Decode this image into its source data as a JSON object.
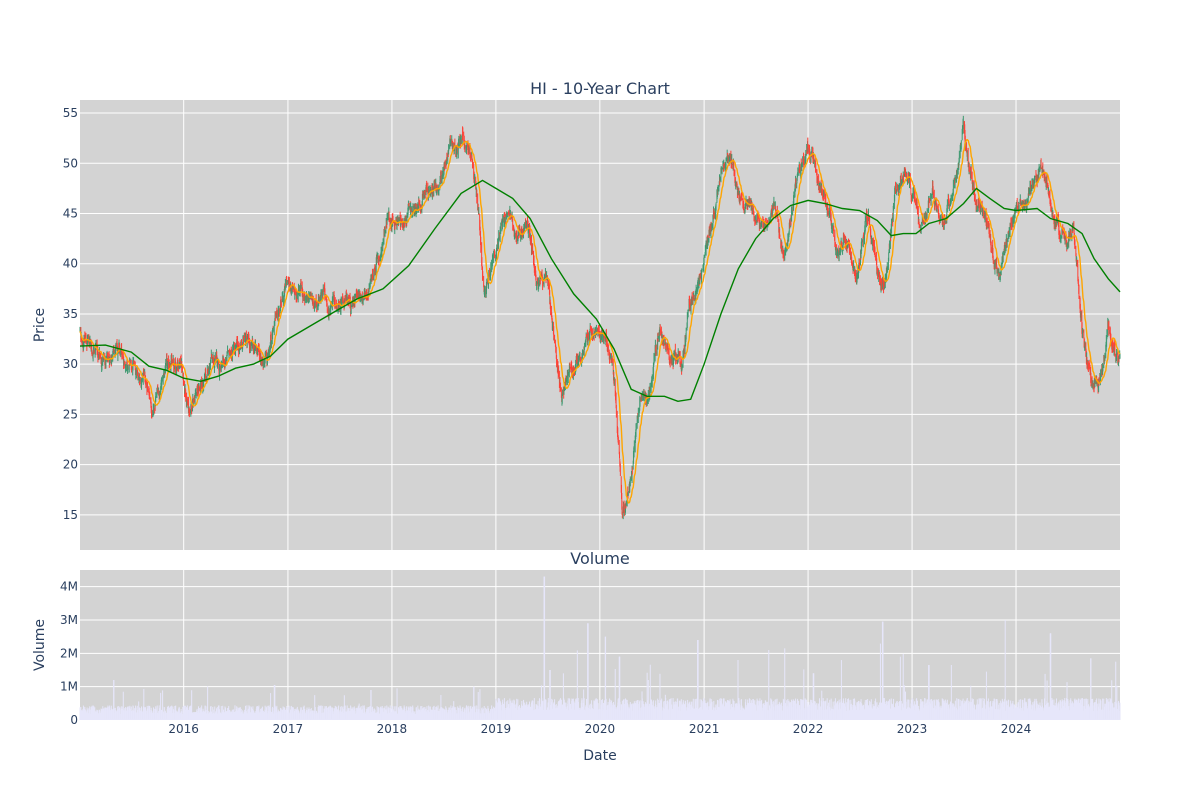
{
  "chart_data": {
    "type": "candlestick",
    "title": "HI - 10-Year Chart",
    "panels": {
      "price": {
        "ylabel": "Price",
        "ylim": [
          11.5,
          56.3
        ],
        "yticks": [
          15,
          20,
          25,
          30,
          35,
          40,
          45,
          50,
          55
        ]
      },
      "volume": {
        "title": "Volume",
        "ylabel": "Volume",
        "ylim": [
          0,
          4500000
        ],
        "yticks": [
          0,
          1000000,
          2000000,
          3000000,
          4000000
        ],
        "ytick_labels": [
          "0",
          "1M",
          "2M",
          "3M",
          "4M"
        ]
      }
    },
    "xlabel": "Date",
    "x_range": [
      "2015-01-02",
      "2024-12-31"
    ],
    "xticks": [
      "2016",
      "2017",
      "2018",
      "2019",
      "2020",
      "2021",
      "2022",
      "2023",
      "2024"
    ],
    "colors": {
      "up": "#3d9970",
      "down": "#ff4136",
      "ma_short": "#ffa500",
      "ma_long": "#008000",
      "volume": "#e6e6fa",
      "plot_bg": "#d3d3d3",
      "grid": "#ffffff",
      "text": "#2a3f5f"
    },
    "series": [
      {
        "type": "candlestick"
      },
      {
        "type": "line",
        "color_key": "ma_short"
      },
      {
        "type": "line",
        "color_key": "ma_long"
      },
      {
        "type": "bar",
        "color_key": "volume"
      }
    ],
    "close_path": [
      [
        "2015-01-02",
        33.5
      ],
      [
        "2015-02-15",
        31.0
      ],
      [
        "2015-04-01",
        30.5
      ],
      [
        "2015-05-15",
        31.5
      ],
      [
        "2015-07-01",
        29.5
      ],
      [
        "2015-08-15",
        27.5
      ],
      [
        "2015-09-20",
        25.8
      ],
      [
        "2015-10-20",
        28.5
      ],
      [
        "2015-11-20",
        30.0
      ],
      [
        "2015-12-25",
        28.5
      ],
      [
        "2016-01-20",
        25.5
      ],
      [
        "2016-02-20",
        27.5
      ],
      [
        "2016-04-01",
        29.5
      ],
      [
        "2016-05-15",
        30.5
      ],
      [
        "2016-07-01",
        31.0
      ],
      [
        "2016-08-01",
        32.5
      ],
      [
        "2016-09-15",
        31.5
      ],
      [
        "2016-10-20",
        30.5
      ],
      [
        "2016-12-01",
        35.0
      ],
      [
        "2016-12-25",
        38.0
      ],
      [
        "2017-02-15",
        36.5
      ],
      [
        "2017-04-01",
        35.5
      ],
      [
        "2017-05-01",
        37.0
      ],
      [
        "2017-06-15",
        35.5
      ],
      [
        "2017-08-15",
        36.0
      ],
      [
        "2017-10-01",
        37.0
      ],
      [
        "2017-11-15",
        40.0
      ],
      [
        "2017-12-20",
        45.0
      ],
      [
        "2018-02-01",
        44.5
      ],
      [
        "2018-03-15",
        45.0
      ],
      [
        "2018-05-01",
        47.0
      ],
      [
        "2018-06-15",
        47.5
      ],
      [
        "2018-07-20",
        52.0
      ],
      [
        "2018-09-10",
        52.5
      ],
      [
        "2018-10-20",
        48.0
      ],
      [
        "2018-11-20",
        37.5
      ],
      [
        "2018-12-25",
        40.5
      ],
      [
        "2019-02-10",
        45.0
      ],
      [
        "2019-03-15",
        42.5
      ],
      [
        "2019-04-20",
        43.0
      ],
      [
        "2019-05-25",
        38.5
      ],
      [
        "2019-07-01",
        39.0
      ],
      [
        "2019-07-20",
        34.0
      ],
      [
        "2019-08-20",
        27.0
      ],
      [
        "2019-10-01",
        30.0
      ],
      [
        "2019-11-15",
        32.0
      ],
      [
        "2020-01-01",
        33.0
      ],
      [
        "2020-02-15",
        30.0
      ],
      [
        "2020-03-20",
        15.0
      ],
      [
        "2020-04-20",
        19.0
      ],
      [
        "2020-05-20",
        27.0
      ],
      [
        "2020-06-20",
        26.5
      ],
      [
        "2020-08-01",
        33.0
      ],
      [
        "2020-09-01",
        30.5
      ],
      [
        "2020-10-15",
        30.0
      ],
      [
        "2020-11-10",
        37.0
      ],
      [
        "2020-12-15",
        39.0
      ],
      [
        "2021-01-20",
        43.0
      ],
      [
        "2021-03-01",
        48.0
      ],
      [
        "2021-04-01",
        50.0
      ],
      [
        "2021-05-15",
        45.0
      ],
      [
        "2021-06-15",
        46.0
      ],
      [
        "2021-07-20",
        44.0
      ],
      [
        "2021-09-01",
        45.5
      ],
      [
        "2021-10-01",
        42.0
      ],
      [
        "2021-11-15",
        47.0
      ],
      [
        "2022-01-01",
        52.0
      ],
      [
        "2022-02-10",
        47.0
      ],
      [
        "2022-03-20",
        45.0
      ],
      [
        "2022-04-20",
        40.5
      ],
      [
        "2022-05-20",
        42.0
      ],
      [
        "2022-06-20",
        39.0
      ],
      [
        "2022-08-01",
        45.0
      ],
      [
        "2022-09-01",
        38.0
      ],
      [
        "2022-09-25",
        37.5
      ],
      [
        "2022-11-01",
        46.0
      ],
      [
        "2022-12-20",
        49.0
      ],
      [
        "2023-02-01",
        43.0
      ],
      [
        "2023-03-15",
        48.0
      ],
      [
        "2023-04-20",
        45.0
      ],
      [
        "2023-06-01",
        47.0
      ],
      [
        "2023-07-01",
        52.5
      ],
      [
        "2023-08-15",
        46.0
      ],
      [
        "2023-09-20",
        43.5
      ],
      [
        "2023-11-01",
        38.5
      ],
      [
        "2023-12-15",
        44.0
      ],
      [
        "2024-02-01",
        46.5
      ],
      [
        "2024-03-01",
        48.5
      ],
      [
        "2024-04-01",
        49.0
      ],
      [
        "2024-05-20",
        43.5
      ],
      [
        "2024-06-20",
        42.0
      ],
      [
        "2024-07-20",
        44.0
      ],
      [
        "2024-08-20",
        34.0
      ],
      [
        "2024-09-20",
        27.5
      ],
      [
        "2024-10-20",
        27.0
      ],
      [
        "2024-11-20",
        34.0
      ],
      [
        "2024-12-31",
        31.0
      ]
    ],
    "ma_long_path": [
      [
        "2015-01-02",
        31.8
      ],
      [
        "2015-04-01",
        31.9
      ],
      [
        "2015-07-01",
        31.2
      ],
      [
        "2015-09-01",
        29.8
      ],
      [
        "2015-11-01",
        29.4
      ],
      [
        "2016-01-01",
        28.6
      ],
      [
        "2016-03-01",
        28.3
      ],
      [
        "2016-05-01",
        28.8
      ],
      [
        "2016-07-01",
        29.6
      ],
      [
        "2016-09-01",
        30.0
      ],
      [
        "2016-11-01",
        30.8
      ],
      [
        "2017-01-01",
        32.5
      ],
      [
        "2017-04-01",
        34.0
      ],
      [
        "2017-07-01",
        35.5
      ],
      [
        "2017-09-01",
        36.5
      ],
      [
        "2017-12-01",
        37.5
      ],
      [
        "2018-03-01",
        39.8
      ],
      [
        "2018-06-01",
        43.5
      ],
      [
        "2018-09-01",
        47.0
      ],
      [
        "2018-11-15",
        48.3
      ],
      [
        "2019-01-01",
        47.5
      ],
      [
        "2019-03-01",
        46.5
      ],
      [
        "2019-05-01",
        44.5
      ],
      [
        "2019-07-15",
        40.5
      ],
      [
        "2019-10-01",
        37.0
      ],
      [
        "2019-12-20",
        34.5
      ],
      [
        "2020-02-20",
        31.5
      ],
      [
        "2020-04-20",
        27.5
      ],
      [
        "2020-06-15",
        26.8
      ],
      [
        "2020-08-15",
        26.8
      ],
      [
        "2020-10-01",
        26.3
      ],
      [
        "2020-11-15",
        26.5
      ],
      [
        "2021-01-01",
        30.0
      ],
      [
        "2021-03-01",
        35.0
      ],
      [
        "2021-05-01",
        39.5
      ],
      [
        "2021-07-01",
        42.5
      ],
      [
        "2021-09-01",
        44.5
      ],
      [
        "2021-11-01",
        45.8
      ],
      [
        "2022-01-01",
        46.3
      ],
      [
        "2022-03-01",
        46.0
      ],
      [
        "2022-05-01",
        45.5
      ],
      [
        "2022-07-01",
        45.3
      ],
      [
        "2022-09-01",
        44.3
      ],
      [
        "2022-10-20",
        42.8
      ],
      [
        "2022-12-01",
        43.0
      ],
      [
        "2023-01-15",
        43.0
      ],
      [
        "2023-03-01",
        44.0
      ],
      [
        "2023-05-01",
        44.5
      ],
      [
        "2023-07-01",
        46.0
      ],
      [
        "2023-08-15",
        47.5
      ],
      [
        "2023-10-01",
        46.5
      ],
      [
        "2023-11-20",
        45.5
      ],
      [
        "2024-01-01",
        45.3
      ],
      [
        "2024-03-15",
        45.5
      ],
      [
        "2024-05-01",
        44.5
      ],
      [
        "2024-07-01",
        44.0
      ],
      [
        "2024-08-20",
        43.0
      ],
      [
        "2024-10-01",
        40.5
      ],
      [
        "2024-11-20",
        38.5
      ],
      [
        "2024-12-31",
        37.2
      ]
    ],
    "volume_peaks": [
      [
        "2015-05-01",
        1200000
      ],
      [
        "2016-11-15",
        1050000
      ],
      [
        "2017-10-20",
        900000
      ],
      [
        "2018-01-20",
        950000
      ],
      [
        "2018-10-15",
        1000000
      ],
      [
        "2019-06-20",
        4300000
      ],
      [
        "2019-06-22",
        2300000
      ],
      [
        "2019-07-10",
        1500000
      ],
      [
        "2019-08-25",
        1400000
      ],
      [
        "2019-11-20",
        2900000
      ],
      [
        "2020-01-20",
        2500000
      ],
      [
        "2020-03-10",
        1900000
      ],
      [
        "2020-06-20",
        1200000
      ],
      [
        "2020-12-10",
        2400000
      ],
      [
        "2021-05-01",
        1800000
      ],
      [
        "2021-08-15",
        2100000
      ],
      [
        "2021-10-10",
        2150000
      ],
      [
        "2022-01-20",
        1400000
      ],
      [
        "2022-09-20",
        2950000
      ],
      [
        "2022-11-20",
        1900000
      ],
      [
        "2023-03-01",
        1650000
      ],
      [
        "2023-05-20",
        1650000
      ],
      [
        "2023-11-25",
        3000000
      ],
      [
        "2024-05-01",
        2600000
      ],
      [
        "2024-09-20",
        1850000
      ],
      [
        "2024-12-15",
        1750000
      ]
    ]
  }
}
